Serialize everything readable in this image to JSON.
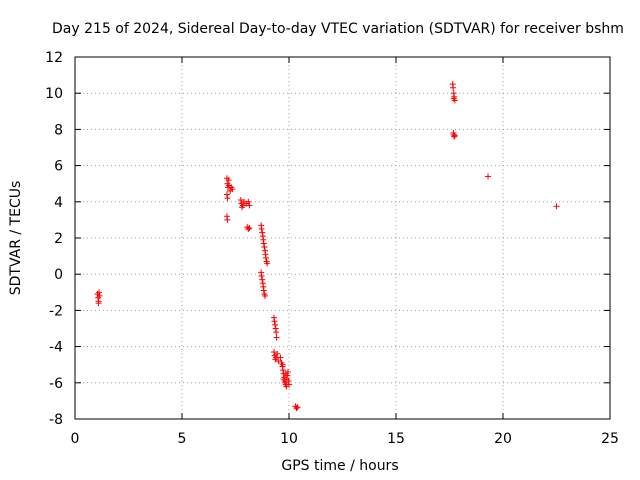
{
  "chart_data": {
    "type": "scatter",
    "title": "Day 215 of 2024, Sidereal Day-to-day VTEC variation (SDTVAR) for receiver bshm",
    "xlabel": "GPS time / hours",
    "ylabel": "SDTVAR / TECUs",
    "xlim": [
      0,
      25
    ],
    "ylim": [
      -8,
      12
    ],
    "xticks": [
      0,
      5,
      10,
      15,
      20,
      25
    ],
    "yticks": [
      -8,
      -6,
      -4,
      -2,
      0,
      2,
      4,
      6,
      8,
      10,
      12
    ],
    "xtick_labels": [
      "0",
      "5",
      "10",
      "15",
      "20",
      "25"
    ],
    "ytick_labels": [
      "-8",
      "-6",
      "-4",
      "-2",
      "0",
      "2",
      "4",
      "6",
      "8",
      "10",
      "12"
    ],
    "grid": true,
    "marker": "plus",
    "color": "#ff0000",
    "series": [
      {
        "name": "SDTVAR",
        "points": [
          [
            1.05,
            -1.1
          ],
          [
            1.08,
            -1.3
          ],
          [
            1.1,
            -1.5
          ],
          [
            1.12,
            -1.0
          ],
          [
            1.15,
            -1.2
          ],
          [
            1.1,
            -1.6
          ],
          [
            7.1,
            5.3
          ],
          [
            7.12,
            5.0
          ],
          [
            7.15,
            4.8
          ],
          [
            7.1,
            4.4
          ],
          [
            7.13,
            4.2
          ],
          [
            7.18,
            5.2
          ],
          [
            7.2,
            4.9
          ],
          [
            7.25,
            4.6
          ],
          [
            7.3,
            4.8
          ],
          [
            7.35,
            4.7
          ],
          [
            7.1,
            3.2
          ],
          [
            7.12,
            3.0
          ],
          [
            7.75,
            4.1
          ],
          [
            7.78,
            3.9
          ],
          [
            7.8,
            3.7
          ],
          [
            7.85,
            3.8
          ],
          [
            7.9,
            4.0
          ],
          [
            8.0,
            3.9
          ],
          [
            8.1,
            4.0
          ],
          [
            8.15,
            3.8
          ],
          [
            8.05,
            2.6
          ],
          [
            8.1,
            2.5
          ],
          [
            8.15,
            2.55
          ],
          [
            8.7,
            2.7
          ],
          [
            8.72,
            2.5
          ],
          [
            8.75,
            2.3
          ],
          [
            8.78,
            2.1
          ],
          [
            8.8,
            1.9
          ],
          [
            8.82,
            1.7
          ],
          [
            8.85,
            1.5
          ],
          [
            8.88,
            1.3
          ],
          [
            8.9,
            1.1
          ],
          [
            8.92,
            0.9
          ],
          [
            8.95,
            0.7
          ],
          [
            8.98,
            0.6
          ],
          [
            8.7,
            0.1
          ],
          [
            8.72,
            -0.1
          ],
          [
            8.75,
            -0.3
          ],
          [
            8.78,
            -0.5
          ],
          [
            8.8,
            -0.7
          ],
          [
            8.82,
            -0.9
          ],
          [
            8.85,
            -1.1
          ],
          [
            8.88,
            -1.2
          ],
          [
            9.3,
            -2.4
          ],
          [
            9.32,
            -2.6
          ],
          [
            9.35,
            -2.8
          ],
          [
            9.38,
            -3.0
          ],
          [
            9.4,
            -3.2
          ],
          [
            9.42,
            -3.5
          ],
          [
            9.3,
            -4.3
          ],
          [
            9.33,
            -4.5
          ],
          [
            9.36,
            -4.7
          ],
          [
            9.4,
            -4.6
          ],
          [
            9.45,
            -4.4
          ],
          [
            9.5,
            -4.8
          ],
          [
            9.6,
            -4.6
          ],
          [
            9.65,
            -4.9
          ],
          [
            9.7,
            -5.1
          ],
          [
            9.72,
            -5.3
          ],
          [
            9.75,
            -5.5
          ],
          [
            9.78,
            -5.7
          ],
          [
            9.8,
            -5.9
          ],
          [
            9.82,
            -6.0
          ],
          [
            9.85,
            -6.1
          ],
          [
            9.88,
            -6.2
          ],
          [
            9.9,
            -5.8
          ],
          [
            9.92,
            -5.6
          ],
          [
            9.95,
            -5.4
          ],
          [
            9.98,
            -5.9
          ],
          [
            10.0,
            -6.1
          ],
          [
            9.7,
            -5.0
          ],
          [
            9.75,
            -5.8
          ],
          [
            9.85,
            -5.5
          ],
          [
            10.3,
            -7.3
          ],
          [
            10.35,
            -7.4
          ],
          [
            10.4,
            -7.35
          ],
          [
            17.65,
            10.5
          ],
          [
            17.67,
            10.3
          ],
          [
            17.7,
            10.0
          ],
          [
            17.72,
            9.8
          ],
          [
            17.75,
            9.6
          ],
          [
            17.7,
            9.7
          ],
          [
            17.68,
            7.8
          ],
          [
            17.7,
            7.7
          ],
          [
            17.72,
            7.6
          ],
          [
            17.75,
            7.65
          ],
          [
            19.3,
            5.4
          ],
          [
            22.5,
            3.75
          ]
        ]
      }
    ]
  }
}
